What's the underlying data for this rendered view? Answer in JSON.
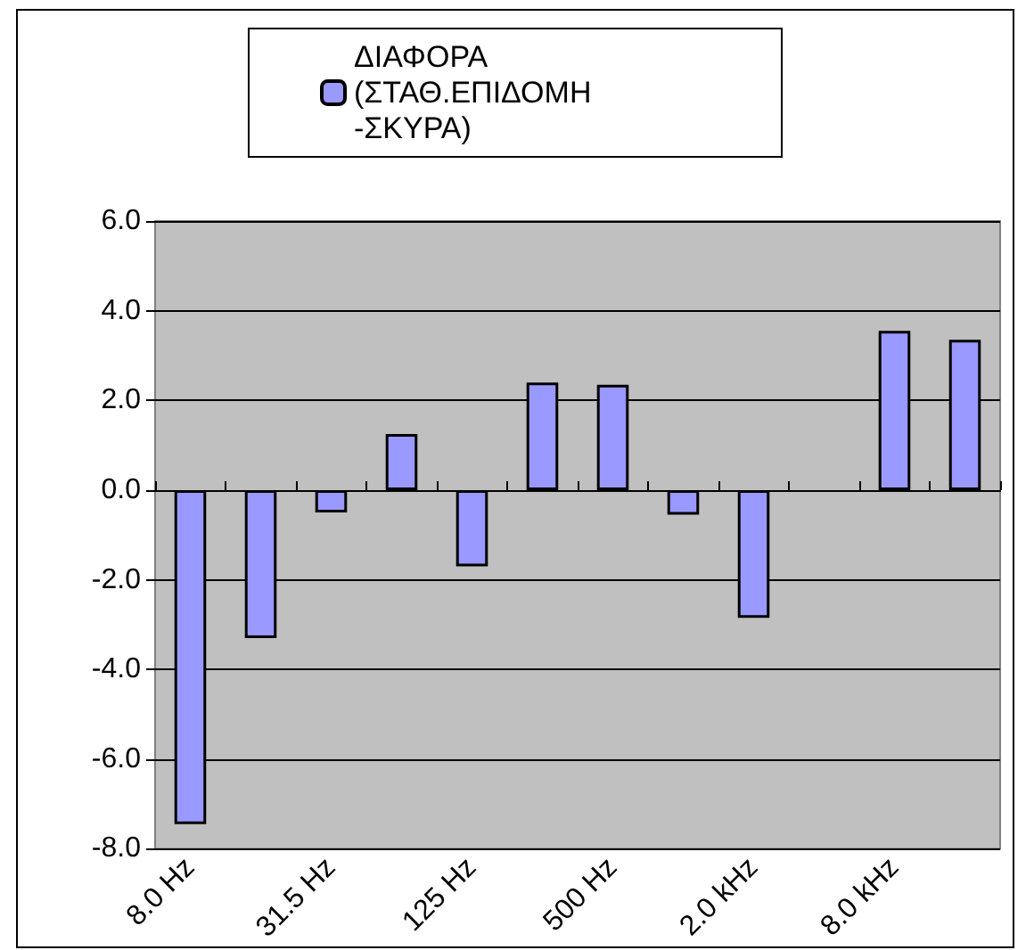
{
  "chart_data": {
    "type": "bar",
    "categories": [
      "8.0 Hz",
      null,
      "31.5 Hz",
      null,
      "125 Hz",
      null,
      "500 Hz",
      null,
      "2.0 kHz",
      null,
      "8.0 kHz",
      null
    ],
    "series": [
      {
        "name": "ΔΙΑΦΟΡΑ (ΣΤΑΘ.ΕΠΙΔΟΜΗ-ΣΚΥΡΑ)",
        "color": "#9999ff",
        "values": [
          -7.45,
          -3.3,
          -0.5,
          1.25,
          -1.7,
          2.4,
          2.35,
          -0.55,
          -2.85,
          null,
          3.55,
          3.35
        ]
      }
    ],
    "ylim": [
      -8,
      6
    ],
    "yticks": [
      {
        "value": -8,
        "label": "-8.0"
      },
      {
        "value": -6,
        "label": "-6.0"
      },
      {
        "value": -4,
        "label": "-4.0"
      },
      {
        "value": -2,
        "label": "-2.0"
      },
      {
        "value": 0,
        "label": "0.0"
      },
      {
        "value": 2,
        "label": "2.0"
      },
      {
        "value": 4,
        "label": "4.0"
      },
      {
        "value": 6,
        "label": "6.0"
      }
    ],
    "grid": "y",
    "legend": "top"
  }
}
